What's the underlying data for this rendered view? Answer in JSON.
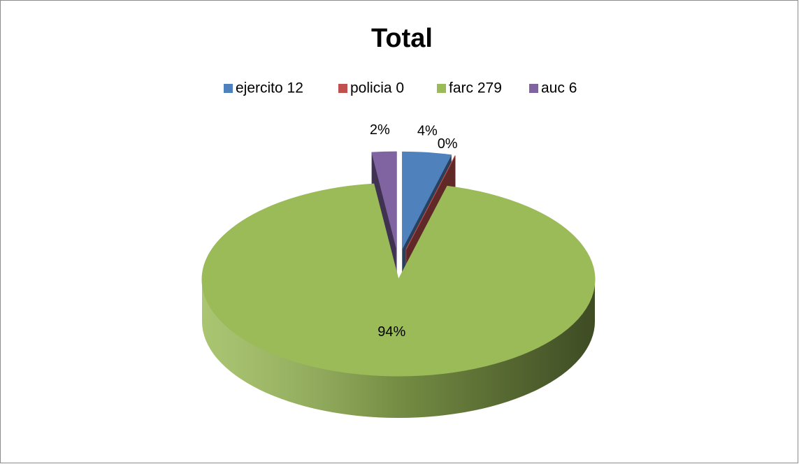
{
  "chart_data": {
    "type": "pie",
    "title": "Total",
    "categories": [
      "ejercito 12",
      "policia 0",
      "farc 279",
      "auc 6"
    ],
    "values": [
      4,
      0,
      94,
      2
    ],
    "value_labels": [
      "4%",
      "0%",
      "94%",
      "2%"
    ],
    "colors": [
      "#4f81bd",
      "#c0504d",
      "#9bbb59",
      "#8064a2"
    ],
    "legend": "top"
  }
}
